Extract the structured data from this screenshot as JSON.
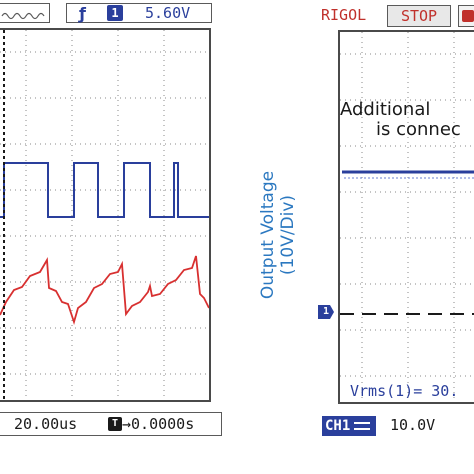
{
  "left_scope": {
    "trigger_channel": "1",
    "trigger_level": "5.60V",
    "timebase": "20.00us",
    "trigger_offset": "0.0000s",
    "trigger_icon": "rising-edge-icon",
    "offset_badge": "T",
    "colors": {
      "ch_blue": "#2a3f9c",
      "ch_red": "#d83030",
      "grid": "#8a8a8a"
    }
  },
  "axis": {
    "line1": "Output Voltage",
    "line2": "(10V/Div)"
  },
  "right_scope": {
    "brand": "RIGOL",
    "status": "STOP",
    "annotation_line1": "Additional",
    "annotation_line2": "is connec",
    "ground_marker": "1",
    "measurement": "Vrms(1)= 30.",
    "channel_label": "CH1",
    "volts_per_div": "10.0V"
  }
}
